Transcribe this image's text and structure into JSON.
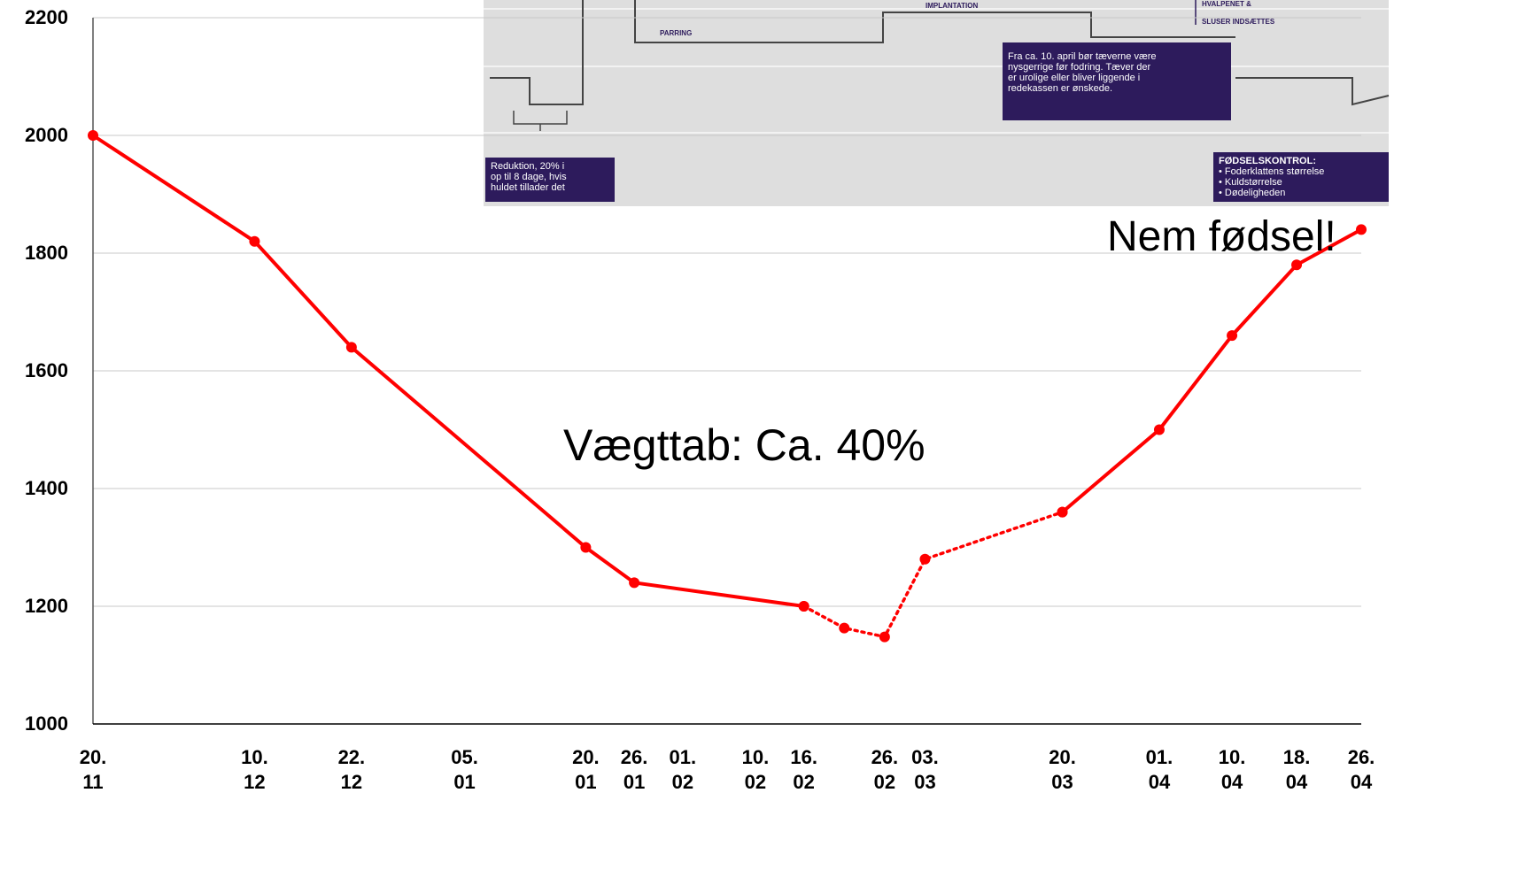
{
  "chart_data": {
    "type": "line",
    "x": [
      "20.\n11",
      "10.\n12",
      "22.\n12",
      "20.\n01",
      "26.\n01",
      "16.\n02",
      null,
      "26.\n02",
      "03.\n03",
      "20.\n03",
      "01.\n04",
      "10.\n04",
      "18.\n04",
      "26.\n04"
    ],
    "series": [
      {
        "color": "#ff0000",
        "style": "solid",
        "values": [
          2000,
          1820,
          1640,
          1300,
          1240,
          1200,
          null,
          null,
          null,
          1360,
          1500,
          1660,
          1780,
          1840
        ]
      },
      {
        "color": "#ff0000",
        "style": "dotted",
        "values": [
          null,
          null,
          null,
          null,
          null,
          1200,
          1163,
          1148,
          1280,
          1360,
          null,
          null,
          null,
          null
        ]
      }
    ],
    "xticks": [
      "20.\n11",
      "10.\n12",
      "22.\n12",
      "05.\n01",
      "20.\n01",
      "26.\n01",
      "01.\n02",
      "10.\n02",
      "16.\n02",
      "26.\n02",
      "03.\n03",
      "20.\n03",
      "01.\n04",
      "10.\n04",
      "18.\n04",
      "26.\n04"
    ],
    "ylim": [
      1000,
      2200
    ],
    "yticks": [
      1000,
      1200,
      1400,
      1600,
      1800,
      2000,
      2200
    ],
    "grid": true,
    "annotations": [
      "Vægttab: Ca. 40%",
      "Nem fødsel!"
    ],
    "inset": {
      "labels": [
        "IMPLANTATION",
        "PARRING",
        "HVALPENET &",
        "SLUSER INDSÆTTES"
      ],
      "box_reduction": [
        "Reduktion, 20% i",
        "op til 8 dage, hvis",
        "huldet tillader det"
      ],
      "box_april": [
        "Fra ca. 10. april bør tæverne være",
        "nysgerrige før fodring. Tæver der",
        "er urolige eller bliver liggende i",
        "redekassen er ønskede."
      ],
      "box_birth": [
        "FØDSELSKONTROL:",
        "• Foderklattens størrelse",
        "• Kuldstørrelse",
        "• Dødeligheden"
      ]
    }
  }
}
